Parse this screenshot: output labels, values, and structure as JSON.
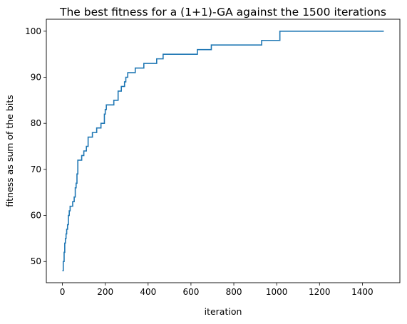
{
  "chart_data": {
    "type": "line",
    "title": "The best fitness for a (1+1)-GA against the 1500 iterations",
    "xlabel": "iteration",
    "ylabel": "fitness as sum of the bits",
    "xlim": [
      -75,
      1575
    ],
    "ylim": [
      45.4,
      102.6
    ],
    "xticks": [
      0,
      200,
      400,
      600,
      800,
      1000,
      1200,
      1400
    ],
    "yticks": [
      50,
      60,
      70,
      80,
      90,
      100
    ],
    "grid": false,
    "line_color": "#1f77b4",
    "series": [
      {
        "step": "post",
        "x": [
          0,
          4,
          8,
          11,
          14,
          17,
          20,
          24,
          28,
          32,
          36,
          42,
          48,
          55,
          60,
          64,
          68,
          72,
          77,
          90,
          100,
          112,
          120,
          140,
          160,
          180,
          196,
          200,
          205,
          230,
          240,
          260,
          270,
          275,
          282,
          290,
          296,
          305,
          315,
          340,
          380,
          440,
          470,
          630,
          695,
          930,
          1015,
          1500
        ],
        "y": [
          48,
          50,
          52,
          54,
          55,
          56,
          57,
          58,
          60,
          61,
          62,
          62,
          63,
          64,
          66,
          67,
          69,
          72,
          72,
          73,
          74,
          75,
          77,
          78,
          79,
          80,
          82,
          83,
          84,
          84,
          85,
          87,
          87,
          88,
          88,
          89,
          90,
          91,
          91,
          92,
          93,
          94,
          95,
          96,
          97,
          98,
          100,
          100
        ]
      }
    ]
  }
}
